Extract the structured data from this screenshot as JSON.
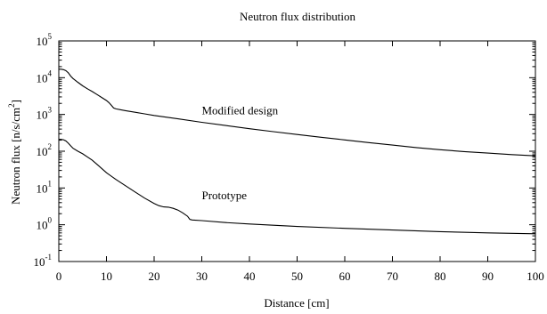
{
  "chart_data": {
    "type": "line",
    "title": "Neutron flux distribution",
    "xlabel": "Distance [cm]",
    "ylabel_base": "Neutron flux [n/s/cm",
    "ylabel_exp": "2",
    "ylabel_close": "]",
    "xlim": [
      0,
      100
    ],
    "ylim": [
      0.1,
      100000
    ],
    "yscale": "log",
    "grid": false,
    "x_ticks": [
      0,
      10,
      20,
      30,
      40,
      50,
      60,
      70,
      80,
      90,
      100
    ],
    "x_tick_labels": [
      "0",
      "10",
      "20",
      "30",
      "40",
      "50",
      "60",
      "70",
      "80",
      "90",
      "100"
    ],
    "y_ticks": [
      0.1,
      1,
      10,
      100,
      1000,
      10000,
      100000
    ],
    "y_tick_base": "10",
    "y_tick_exponents": [
      "-1",
      "0",
      "1",
      "2",
      "3",
      "4",
      "5"
    ],
    "series": [
      {
        "name": "Modified design",
        "x": [
          0,
          0.5,
          1,
          1.5,
          2,
          2.5,
          3,
          4,
          5,
          6,
          7,
          8,
          9,
          10,
          10.5,
          11,
          11.5,
          12,
          13,
          14,
          16,
          18,
          20,
          25,
          30,
          35,
          40,
          45,
          50,
          55,
          60,
          65,
          70,
          75,
          80,
          85,
          90,
          95,
          100
        ],
        "y": [
          17000,
          17000,
          16500,
          15500,
          13500,
          11000,
          9500,
          7500,
          6000,
          5000,
          4200,
          3500,
          2900,
          2400,
          2100,
          1800,
          1500,
          1420,
          1340,
          1270,
          1150,
          1040,
          940,
          760,
          610,
          500,
          410,
          340,
          285,
          240,
          203,
          172,
          147,
          126,
          110,
          98,
          89,
          81,
          75
        ],
        "label_x": 30,
        "label_y": 1000
      },
      {
        "name": "Prototype",
        "x": [
          0,
          0.5,
          1,
          1.5,
          2,
          2.5,
          3,
          4,
          5,
          6,
          7,
          8,
          9,
          10,
          12,
          14,
          16,
          18,
          20,
          21,
          22,
          23,
          24,
          25,
          26,
          27,
          27.5,
          28,
          30,
          35,
          40,
          50,
          60,
          70,
          80,
          90,
          100
        ],
        "y": [
          210,
          210,
          205,
          190,
          165,
          140,
          120,
          100,
          85,
          70,
          57,
          44,
          34,
          26,
          17,
          11.5,
          7.8,
          5.3,
          3.8,
          3.3,
          3.05,
          3.0,
          2.8,
          2.5,
          2.1,
          1.7,
          1.4,
          1.35,
          1.3,
          1.15,
          1.05,
          0.9,
          0.8,
          0.72,
          0.65,
          0.6,
          0.57
        ],
        "label_x": 30,
        "label_y": 5
      }
    ]
  }
}
